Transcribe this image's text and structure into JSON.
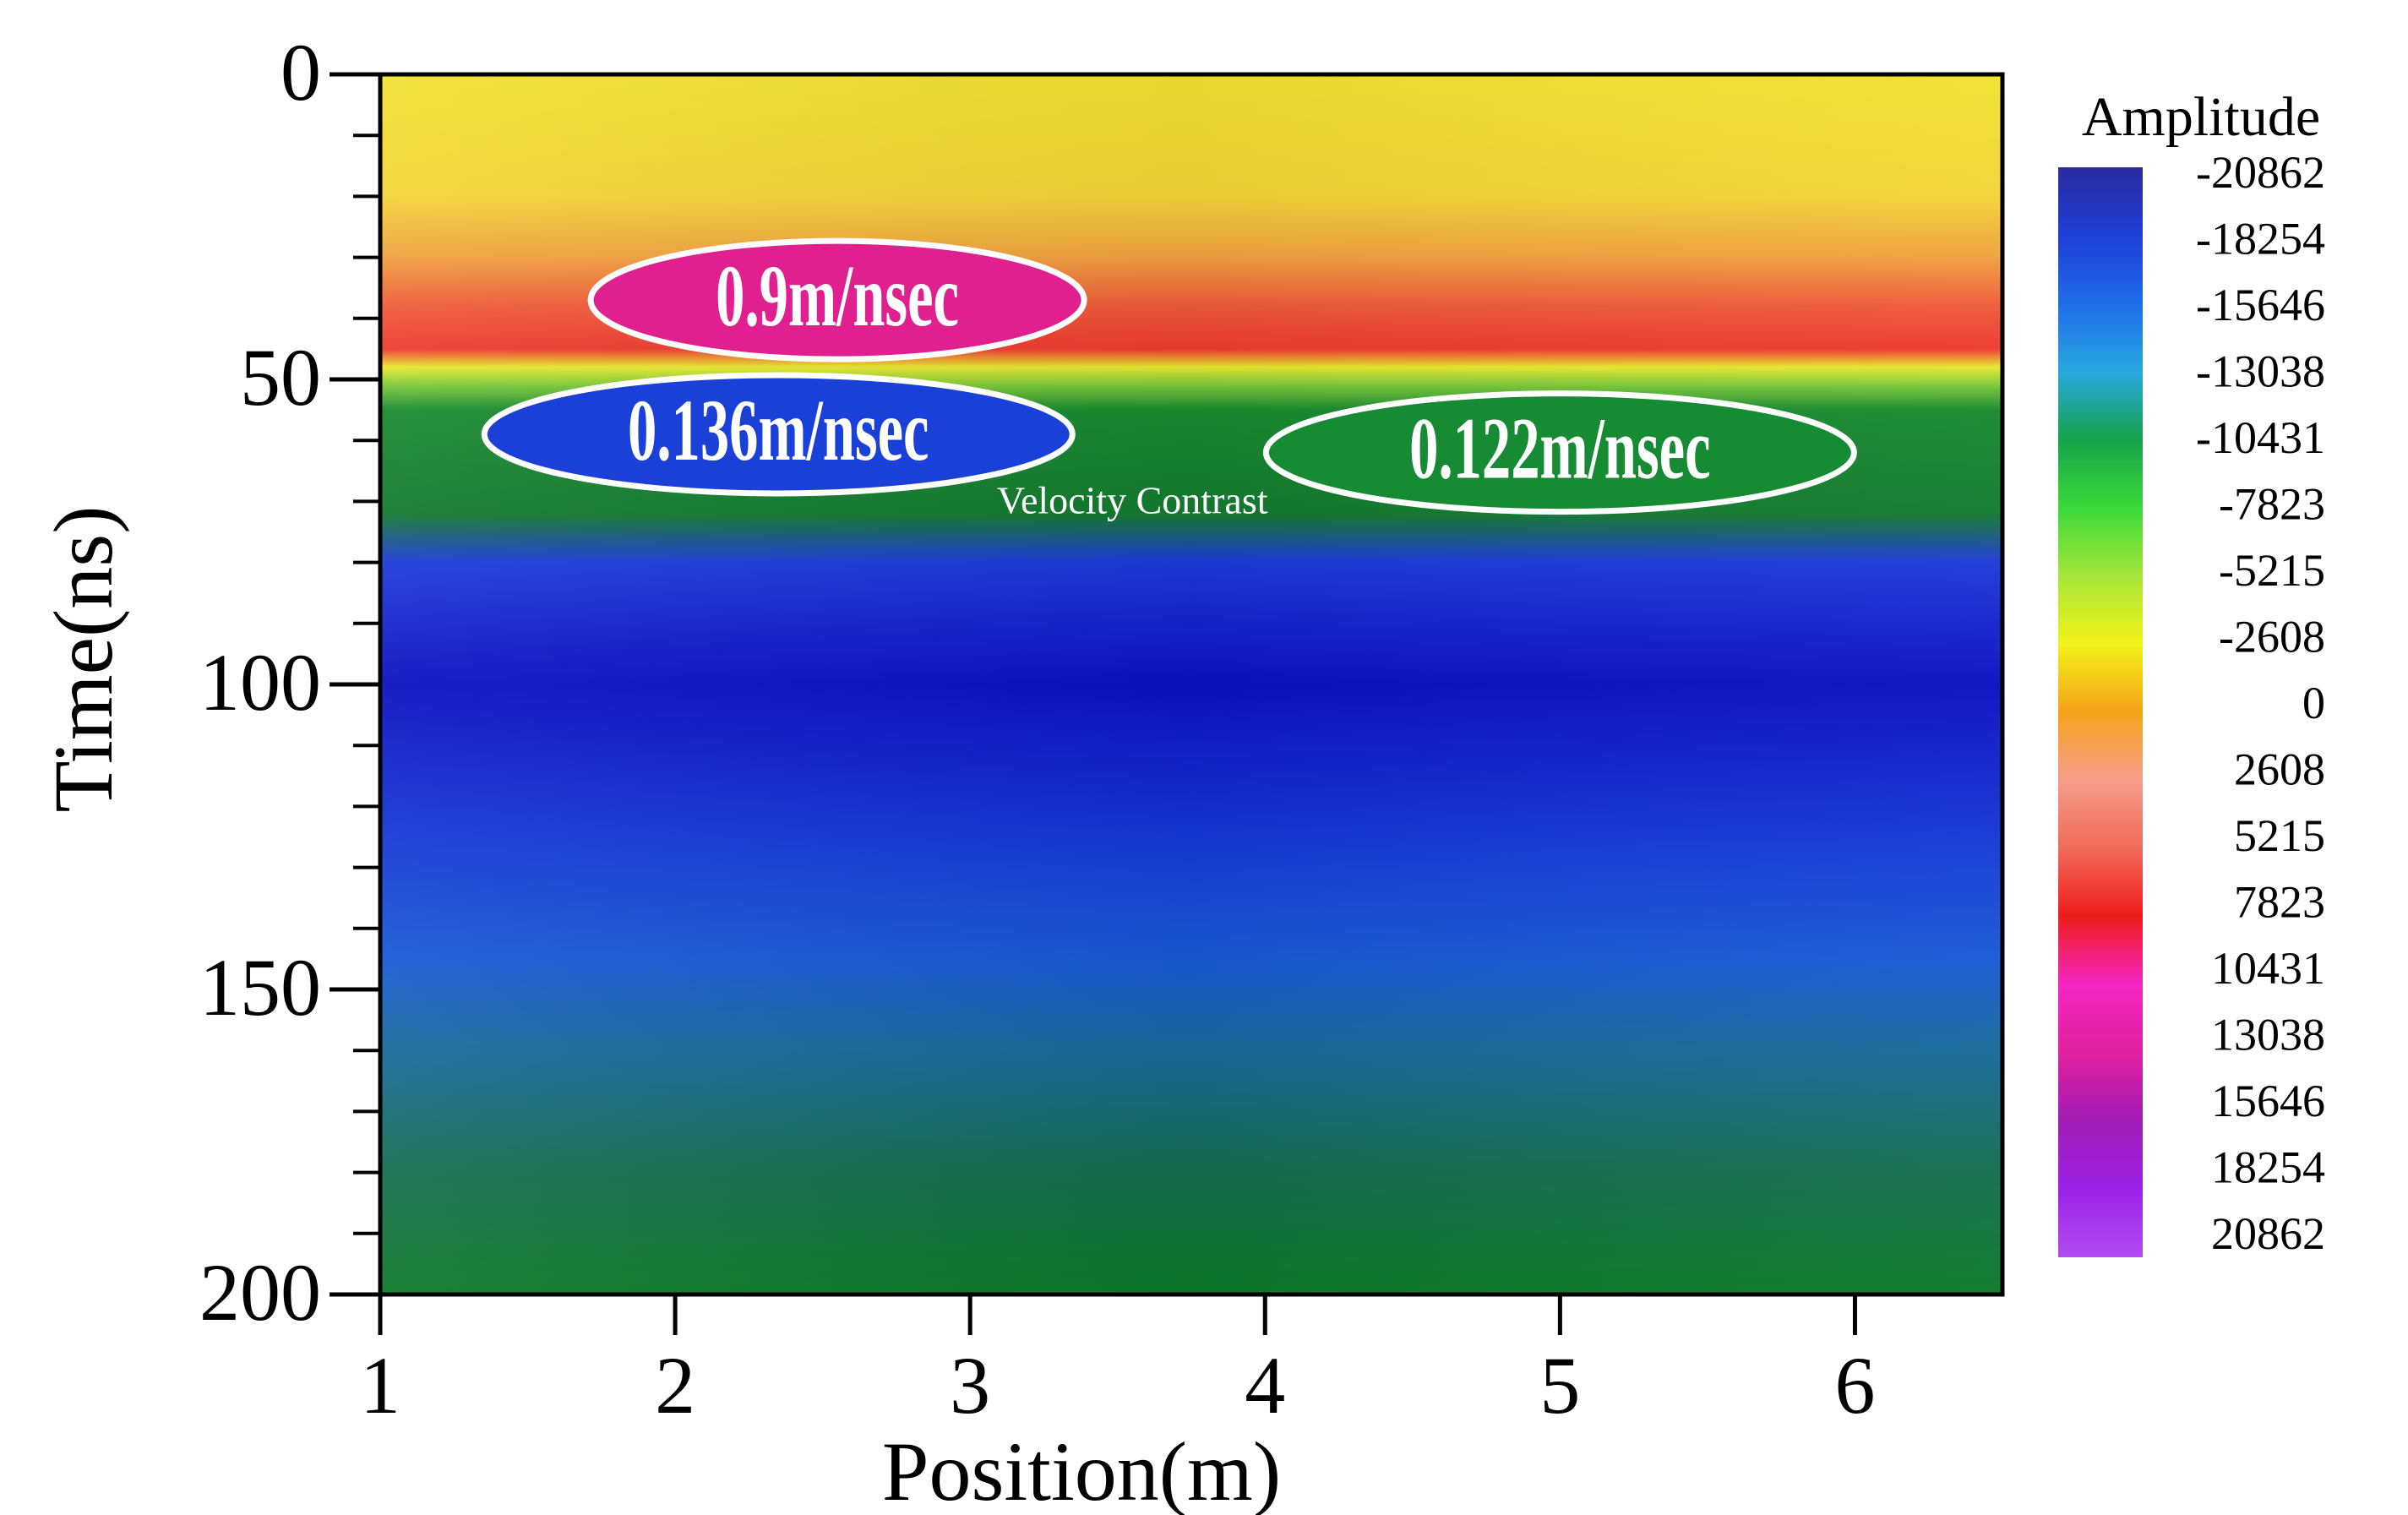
{
  "chart_data": {
    "type": "heatmap",
    "title": "",
    "xlabel": "Position(m)",
    "ylabel": "Time(ns)",
    "xlim": [
      1,
      6.5
    ],
    "ylim": [
      0,
      200
    ],
    "y_inverted": true,
    "x_ticks": [
      "1",
      "2",
      "3",
      "4",
      "5",
      "6"
    ],
    "x_tick_values": [
      1,
      2,
      3,
      4,
      5,
      6
    ],
    "y_ticks": [
      "0",
      "50",
      "100",
      "150",
      "200"
    ],
    "y_tick_values": [
      0,
      50,
      100,
      150,
      200
    ],
    "grid": false,
    "colorbar": {
      "title": "Amplitude",
      "labels": [
        "-20862",
        "-18254",
        "-15646",
        "-13038",
        "-10431",
        "-7823",
        "-5215",
        "-2608",
        "0",
        "2608",
        "5215",
        "7823",
        "10431",
        "13038",
        "15646",
        "18254",
        "20862"
      ],
      "colors": [
        "#2a2a9e",
        "#1f3fd6",
        "#1f6ce8",
        "#29a7e0",
        "#17a34a",
        "#3bd93b",
        "#a6e63a",
        "#f2f21a",
        "#f5a31a",
        "#f59c8a",
        "#f06a5a",
        "#ee1c1c",
        "#f526c2",
        "#e0209e",
        "#a21cb5",
        "#9a22e6",
        "#b24cf2"
      ]
    },
    "bands": [
      {
        "t": 0,
        "color": "#f2e030"
      },
      {
        "t": 20,
        "color": "#f2d438"
      },
      {
        "t": 30,
        "color": "#f0a040"
      },
      {
        "t": 38,
        "color": "#ee5a3a"
      },
      {
        "t": 45,
        "color": "#ee3a30"
      },
      {
        "t": 48,
        "color": "#e8e830"
      },
      {
        "t": 51,
        "color": "#7cc83a"
      },
      {
        "t": 55,
        "color": "#1a8a30"
      },
      {
        "t": 72,
        "color": "#147a30"
      },
      {
        "t": 80,
        "color": "#1e3ad8"
      },
      {
        "t": 100,
        "color": "#0c10c0"
      },
      {
        "t": 125,
        "color": "#1638d4"
      },
      {
        "t": 145,
        "color": "#1a5ad6"
      },
      {
        "t": 160,
        "color": "#1a6a9a"
      },
      {
        "t": 180,
        "color": "#166e50"
      },
      {
        "t": 200,
        "color": "#0e7a2a"
      }
    ],
    "annotations": [
      {
        "text": "0.9m/nsec",
        "x": 2.55,
        "y": 37,
        "fill": "#e0208e",
        "stroke": "#ffffff"
      },
      {
        "text": "0.136m/nsec",
        "x": 2.35,
        "y": 59,
        "fill": "#1a40d8",
        "stroke": "#ffffff"
      },
      {
        "text": "0.122m/nsec",
        "x": 5.0,
        "y": 62,
        "fill": "#178a34",
        "stroke": "#ffffff"
      },
      {
        "text": "Velocity Contrast",
        "x": 3.55,
        "y": 70,
        "fill": "none",
        "stroke": "none"
      }
    ]
  }
}
